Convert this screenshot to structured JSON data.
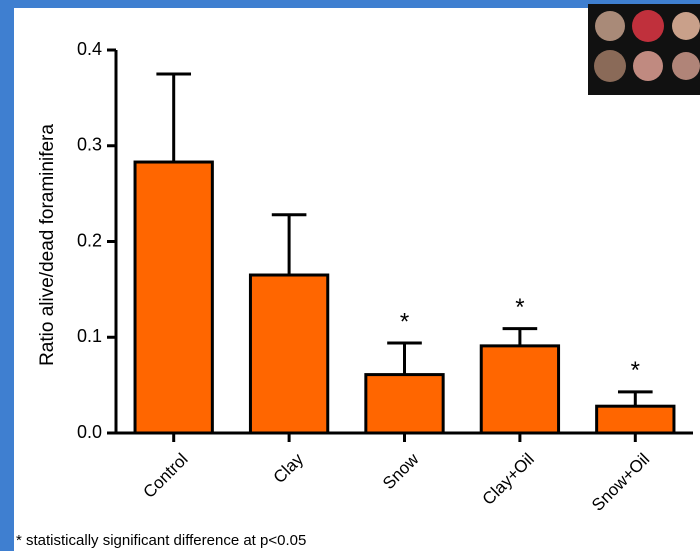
{
  "chart_data": {
    "type": "bar",
    "y_axis_label": "Ratio alive/dead foraminifera",
    "categories": [
      "Control",
      "Clay",
      "Snow",
      "Clay+Oil",
      "Snow+Oil"
    ],
    "values": [
      0.283,
      0.165,
      0.061,
      0.091,
      0.028
    ],
    "errors": [
      0.092,
      0.063,
      0.033,
      0.018,
      0.015
    ],
    "color": "#ff6600",
    "ylim": [
      0,
      0.4
    ],
    "yticks": [
      {
        "value": 0,
        "label": "0.0"
      },
      0.1,
      0.2,
      0.3,
      0.4
    ],
    "annotations": [
      {
        "category_index": 2,
        "text": "*"
      },
      {
        "category_index": 3,
        "text": "*"
      },
      {
        "category_index": 4,
        "text": "*"
      }
    ],
    "footnote": "* statistically significant difference at p<0.05"
  }
}
